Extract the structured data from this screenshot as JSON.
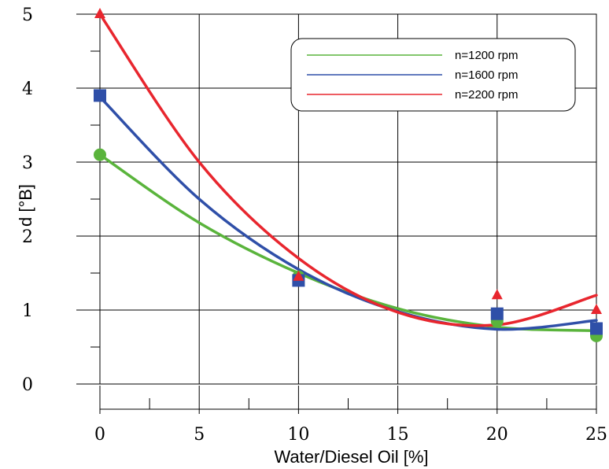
{
  "chart_data": {
    "type": "scatter",
    "xlabel": "Water/Diesel Oil [%]",
    "ylabel": "d [°B]",
    "xlim": [
      0,
      25
    ],
    "ylim": [
      0,
      5
    ],
    "x_ticks": [
      "0",
      "5",
      "10",
      "15",
      "20",
      "25"
    ],
    "y_ticks": [
      "0",
      "1",
      "2",
      "3",
      "4",
      "5"
    ],
    "grid": true,
    "legend_position": "top-right",
    "series": [
      {
        "name": "n=1200 rpm",
        "color": "#5ab43c",
        "marker": "circle",
        "x": [
          0,
          10,
          20,
          25
        ],
        "values": [
          3.1,
          1.45,
          0.85,
          0.65
        ],
        "fit": [
          3.1,
          2.18,
          1.5,
          1.02,
          0.77,
          0.72
        ]
      },
      {
        "name": "n=1600 rpm",
        "color": "#2f4fa8",
        "marker": "square",
        "x": [
          0,
          10,
          20,
          25
        ],
        "values": [
          3.9,
          1.4,
          0.95,
          0.75
        ],
        "fit": [
          3.88,
          2.5,
          1.55,
          0.98,
          0.74,
          0.86
        ]
      },
      {
        "name": "n=2200 rpm",
        "color": "#e8262e",
        "marker": "triangle",
        "x": [
          0,
          10,
          20,
          25
        ],
        "values": [
          5.0,
          1.45,
          1.2,
          1.0
        ],
        "fit": [
          5.0,
          3.0,
          1.7,
          0.97,
          0.8,
          1.2
        ]
      }
    ]
  }
}
